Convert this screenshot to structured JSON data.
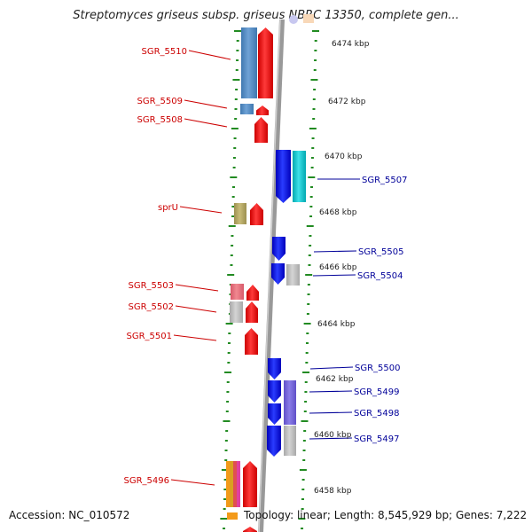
{
  "header": {
    "title": "Streptomyces griseus subsp. griseus NBRC 13350, complete gen..."
  },
  "footer": {
    "accession": "Accession: NC_010572",
    "summary": "Topology: linear; Length: 8,545,929 bp; Genes: 7,222"
  },
  "colors": {
    "forward_label": "#cc0000",
    "reverse_label": "#000099",
    "forward_gene": "#ff0000",
    "reverse_gene": "#0000ee",
    "genome_line": "#999999",
    "tick": "#228b22"
  },
  "ruler": [
    {
      "label": "6474 kbp"
    },
    {
      "label": "6472 kbp"
    },
    {
      "label": "6470 kbp"
    },
    {
      "label": "6468 kbp"
    },
    {
      "label": "6466 kbp"
    },
    {
      "label": "6464 kbp"
    },
    {
      "label": "6462 kbp"
    },
    {
      "label": "6460 kbp"
    },
    {
      "label": "6458 kbp"
    }
  ],
  "genes_left": [
    {
      "label": "SGR_5510"
    },
    {
      "label": "SGR_5509"
    },
    {
      "label": "SGR_5508"
    },
    {
      "label": "sprU"
    },
    {
      "label": "SGR_5503"
    },
    {
      "label": "SGR_5502"
    },
    {
      "label": "SGR_5501"
    },
    {
      "label": "SGR_5496"
    }
  ],
  "genes_right": [
    {
      "label": "SGR_5507"
    },
    {
      "label": "SGR_5505"
    },
    {
      "label": "SGR_5504"
    },
    {
      "label": "SGR_5500"
    },
    {
      "label": "SGR_5499"
    },
    {
      "label": "SGR_5498"
    },
    {
      "label": "SGR_5497"
    }
  ]
}
